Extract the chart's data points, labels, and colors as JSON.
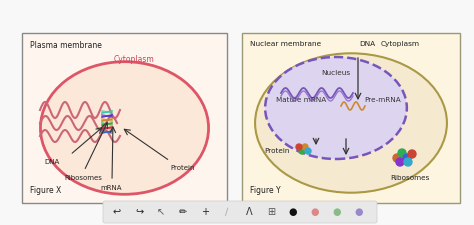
{
  "bg_color": "#f5f5f5",
  "fig_bg": "#ffffff",
  "left_box": {
    "bg": "#fef9f0",
    "border": "#888888",
    "title": "Plasma membrane",
    "subtitle": "Cytoplasm",
    "figure_label": "Figure X",
    "cell_color": "#f5c5c5",
    "cell_fill": "#fdeee0",
    "labels": [
      "DNA",
      "Ribosomes",
      "mRNA",
      "Protein"
    ]
  },
  "right_box": {
    "bg": "#fdf5e0",
    "border": "#888888",
    "title1": "Nuclear membrane",
    "title2": "DNA",
    "title3": "Cytoplasm",
    "nucleus_label": "Nucleus",
    "mature_mrna": "Mature mRNA",
    "pre_mrna": "Pre-mRNA",
    "protein": "Protein",
    "ribosomes": "Ribosomes",
    "figure_label": "Figure Y",
    "nucleus_fill": "#d8d0f0",
    "nucleus_edge": "#7755bb",
    "cell_fill": "#f0e8c8",
    "cell_edge": "#aa8833"
  },
  "toolbar": {
    "bg": "#e8e8e8",
    "icons": [
      "↩",
      "↪",
      "↖",
      "✏",
      "+",
      "/",
      "Λ",
      "🖼",
      "⬤",
      "⬤",
      "⬤",
      "⬤"
    ],
    "icon_colors": [
      "#222222",
      "#222222",
      "#222222",
      "#222222",
      "#222222",
      "#aaaaaa",
      "#333333",
      "#555555",
      "#111111",
      "#e08080",
      "#88cc88",
      "#9988dd"
    ]
  }
}
